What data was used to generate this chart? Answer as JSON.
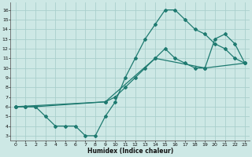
{
  "xlabel": "Humidex (Indice chaleur)",
  "bg_color": "#cde8e5",
  "grid_color": "#aacfcc",
  "line_color": "#1e7a70",
  "xlim": [
    -0.5,
    23.5
  ],
  "ylim": [
    2.5,
    16.8
  ],
  "xticks": [
    0,
    1,
    2,
    3,
    4,
    5,
    6,
    7,
    8,
    9,
    10,
    11,
    12,
    13,
    14,
    15,
    16,
    17,
    18,
    19,
    20,
    21,
    22,
    23
  ],
  "yticks": [
    3,
    4,
    5,
    6,
    7,
    8,
    9,
    10,
    11,
    12,
    13,
    14,
    15,
    16
  ],
  "line1_x": [
    0,
    1,
    2,
    3,
    4,
    5,
    6,
    7,
    8,
    9,
    10,
    11,
    12,
    13,
    14,
    15,
    16,
    17,
    18,
    19,
    20,
    21,
    22,
    23
  ],
  "line1_y": [
    6,
    6,
    6,
    5,
    4,
    4,
    4,
    3,
    3,
    5,
    6.5,
    9,
    11,
    13,
    14.5,
    16,
    16,
    15,
    14,
    13.5,
    12.5,
    12,
    11,
    10.5
  ],
  "line2_x": [
    0,
    1,
    2,
    9,
    10,
    11,
    12,
    13,
    14,
    15,
    16,
    17,
    18,
    19,
    20,
    21,
    22,
    23
  ],
  "line2_y": [
    6,
    6,
    6,
    6.5,
    7,
    8,
    9,
    10,
    11,
    12,
    11,
    10.5,
    10,
    10,
    13,
    13.5,
    12.5,
    10.5
  ],
  "line3_x": [
    0,
    9,
    14,
    19,
    23
  ],
  "line3_y": [
    6,
    6.5,
    11,
    10,
    10.5
  ]
}
